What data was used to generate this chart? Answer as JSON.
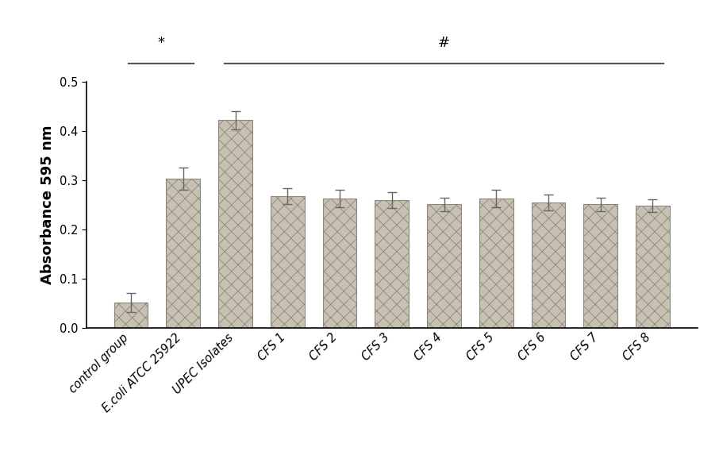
{
  "categories": [
    "control group",
    "E.coli ATCC 25922",
    "UPEC Isolates",
    "CFS 1",
    "CFS 2",
    "CFS 3",
    "CFS 4",
    "CFS 5",
    "CFS 6",
    "CFS 7",
    "CFS 8"
  ],
  "values": [
    0.051,
    0.303,
    0.422,
    0.268,
    0.263,
    0.259,
    0.251,
    0.263,
    0.255,
    0.251,
    0.248
  ],
  "errors": [
    0.02,
    0.022,
    0.018,
    0.016,
    0.018,
    0.016,
    0.014,
    0.018,
    0.016,
    0.014,
    0.013
  ],
  "bar_color": "#c8c0b0",
  "bar_edgecolor": "#888880",
  "bar_hatch": "xx",
  "hatch_color": "#999990",
  "ylabel": "Absorbance 595 nm",
  "ylim": [
    0,
    0.5
  ],
  "yticks": [
    0,
    0.1,
    0.2,
    0.3,
    0.4,
    0.5
  ],
  "background_color": "#ffffff",
  "bracket1_label": "*",
  "bracket2_label": "#",
  "label_fontsize": 13,
  "tick_fontsize": 10.5,
  "bracket_line_color": "#555555",
  "bracket_line_lw": 1.5
}
